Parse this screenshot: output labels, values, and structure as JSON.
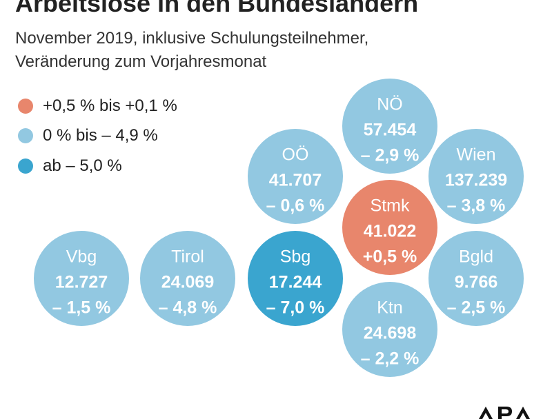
{
  "title": "Arbeitslose in den Bundesländern",
  "subtitle_line1": "November 2019, inklusive Schulungsteilnehmer,",
  "subtitle_line2": "Veränderung zum Vorjahresmonat",
  "legend": [
    {
      "label": "+0,5 % bis +0,1 %",
      "color": "#e8866c"
    },
    {
      "label": "0 % bis – 4,9 %",
      "color": "#92c8e1"
    },
    {
      "label": "ab – 5,0 %",
      "color": "#3aa5cf"
    }
  ],
  "logo_text": "APA",
  "chart_data": {
    "type": "bubble",
    "title": "Arbeitslose in den Bundesländern",
    "subtitle": "November 2019, inklusive Schulungsteilnehmer, Veränderung zum Vorjahresmonat",
    "series": [
      {
        "name": "NÖ",
        "value": 57454,
        "value_label": "57.454",
        "change": -2.9,
        "change_label": "– 2,9 %",
        "category": 1
      },
      {
        "name": "OÖ",
        "value": 41707,
        "value_label": "41.707",
        "change": -0.6,
        "change_label": "– 0,6 %",
        "category": 1
      },
      {
        "name": "Wien",
        "value": 137239,
        "value_label": "137.239",
        "change": -3.8,
        "change_label": "– 3,8 %",
        "category": 1
      },
      {
        "name": "Stmk",
        "value": 41022,
        "value_label": "41.022",
        "change": 0.5,
        "change_label": "+0,5 %",
        "category": 0
      },
      {
        "name": "Vbg",
        "value": 12727,
        "value_label": "12.727",
        "change": -1.5,
        "change_label": "– 1,5 %",
        "category": 1
      },
      {
        "name": "Tirol",
        "value": 24069,
        "value_label": "24.069",
        "change": -4.8,
        "change_label": "– 4,8 %",
        "category": 1
      },
      {
        "name": "Sbg",
        "value": 17244,
        "value_label": "17.244",
        "change": -7.0,
        "change_label": "– 7,0 %",
        "category": 2
      },
      {
        "name": "Bgld",
        "value": 9766,
        "value_label": "9.766",
        "change": -2.5,
        "change_label": "– 2,5 %",
        "category": 1
      },
      {
        "name": "Ktn",
        "value": 24698,
        "value_label": "24.698",
        "change": -2.2,
        "change_label": "– 2,2 %",
        "category": 1
      }
    ]
  }
}
